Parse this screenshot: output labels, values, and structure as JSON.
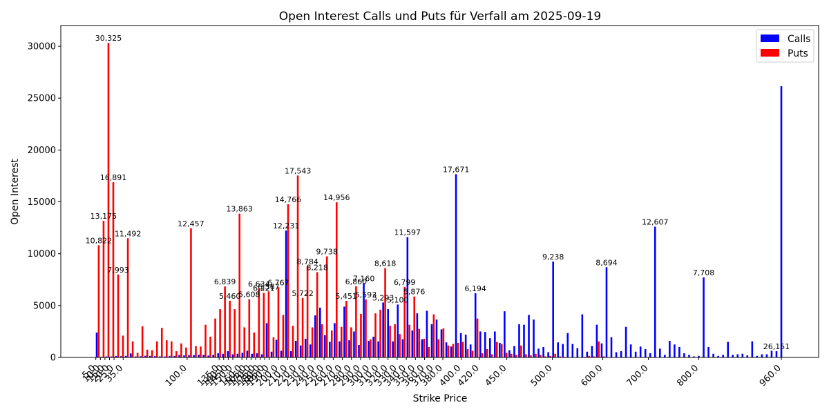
{
  "chart_data": {
    "type": "bar",
    "title": "Open Interest Calls und Puts für Verfall am 2025-09-19",
    "xlabel": "Strike Price",
    "ylabel": "Open Interest",
    "ylim": [
      0,
      32000
    ],
    "y_ticks": [
      0,
      5000,
      10000,
      15000,
      20000,
      25000,
      30000
    ],
    "grid": false,
    "legend_position": "top-right",
    "x_tick_labels": [
      "5.0",
      "10.0",
      "15.0",
      "20.0",
      "25.0",
      "35.0",
      "100.0",
      "135.0",
      "140.0",
      "145.0",
      "150.0",
      "160.0",
      "165.0",
      "170.0",
      "175.0",
      "180.0",
      "185.0",
      "190.0",
      "200.0",
      "210.0",
      "220.0",
      "230.0",
      "240.0",
      "250.0",
      "260.0",
      "270.0",
      "280.0",
      "290.0",
      "300.0",
      "310.0",
      "320.0",
      "330.0",
      "340.0",
      "350.0",
      "360.0",
      "370.0",
      "380.0",
      "400.0",
      "420.0",
      "450.0",
      "500.0",
      "600.0",
      "700.0",
      "800.0",
      "960.0"
    ],
    "series": [
      {
        "name": "Calls",
        "color": "#0000ff",
        "values": [
          2400,
          70,
          100,
          90,
          130,
          120,
          150,
          380,
          90,
          110,
          160,
          140,
          120,
          100,
          90,
          120,
          140,
          230,
          190,
          220,
          230,
          260,
          250,
          180,
          250,
          400,
          350,
          600,
          300,
          350,
          450,
          650,
          350,
          400,
          300,
          3300,
          550,
          1700,
          650,
          12231,
          600,
          1600,
          1150,
          1800,
          1250,
          4050,
          4800,
          2150,
          1500,
          3300,
          1550,
          4900,
          1650,
          2500,
          1200,
          7160,
          1600,
          2000,
          1550,
          5293,
          4650,
          1550,
          5100,
          1750,
          11597,
          2600,
          4250,
          1750,
          4500,
          3200,
          3650,
          2700,
          1450,
          1050,
          17671,
          2350,
          2200,
          1250,
          6194,
          2500,
          2450,
          1850,
          2500,
          1400,
          4450,
          700,
          1100,
          3200,
          3150,
          4100,
          3650,
          850,
          1000,
          500,
          9238,
          1450,
          1300,
          2350,
          1300,
          900,
          4150,
          550,
          1100,
          3150,
          1350,
          8694,
          1950,
          500,
          600,
          2950,
          1250,
          550,
          1050,
          800,
          400,
          12607,
          850,
          250,
          1600,
          1250,
          1000,
          400,
          250,
          100,
          150,
          7708,
          1000,
          350,
          150,
          250,
          1500,
          250,
          300,
          350,
          200,
          1550,
          150,
          300,
          300,
          650,
          600,
          26151
        ]
      },
      {
        "name": "Puts",
        "color": "#ff0000",
        "values": [
          10822,
          13175,
          30325,
          16891,
          7993,
          2100,
          11492,
          1550,
          450,
          3000,
          750,
          700,
          1550,
          2850,
          1650,
          1550,
          600,
          1350,
          950,
          12457,
          1100,
          1050,
          3150,
          2000,
          3750,
          4650,
          6839,
          5460,
          4650,
          13863,
          2900,
          5608,
          2400,
          6634,
          6221,
          6367,
          1950,
          6767,
          4100,
          14766,
          3050,
          17543,
          5722,
          8784,
          2900,
          8218,
          3200,
          9738,
          2600,
          14956,
          2950,
          5451,
          2900,
          6860,
          4200,
          5593,
          1750,
          4250,
          4600,
          8618,
          3050,
          3200,
          2250,
          6799,
          3150,
          5876,
          2750,
          1800,
          1000,
          4150,
          1750,
          2800,
          1150,
          1300,
          1400,
          1500,
          800,
          650,
          3750,
          400,
          800,
          300,
          1500,
          1300,
          450,
          350,
          250,
          1150,
          300,
          200,
          350,
          250,
          100,
          150,
          350,
          100,
          50,
          0,
          0,
          0,
          50,
          150,
          100,
          1550,
          100
        ]
      }
    ],
    "data_labels": [
      {
        "text": "10,822",
        "series": "Puts",
        "index": 0
      },
      {
        "text": "13,175",
        "series": "Puts",
        "index": 1
      },
      {
        "text": "30,325",
        "series": "Puts",
        "index": 2
      },
      {
        "text": "16,891",
        "series": "Puts",
        "index": 3
      },
      {
        "text": "7,993",
        "series": "Puts",
        "index": 4
      },
      {
        "text": "11,492",
        "series": "Puts",
        "index": 6
      },
      {
        "text": "12,457",
        "series": "Puts",
        "index": 19
      },
      {
        "text": "6,839",
        "series": "Puts",
        "index": 26
      },
      {
        "text": "5,460",
        "series": "Puts",
        "index": 27
      },
      {
        "text": "13,863",
        "series": "Puts",
        "index": 29
      },
      {
        "text": "5,608",
        "series": "Puts",
        "index": 31
      },
      {
        "text": "6,634",
        "series": "Puts",
        "index": 33
      },
      {
        "text": "6,221",
        "series": "Puts",
        "index": 34
      },
      {
        "text": "6,367",
        "series": "Puts",
        "index": 35
      },
      {
        "text": "6,767",
        "series": "Puts",
        "index": 37
      },
      {
        "text": "14,766",
        "series": "Puts",
        "index": 39
      },
      {
        "text": "17,543",
        "series": "Puts",
        "index": 41
      },
      {
        "text": "5,722",
        "series": "Puts",
        "index": 42
      },
      {
        "text": "8,784",
        "series": "Puts",
        "index": 43
      },
      {
        "text": "12,231",
        "series": "Calls",
        "index": 39
      },
      {
        "text": "8,218",
        "series": "Puts",
        "index": 45
      },
      {
        "text": "9,738",
        "series": "Puts",
        "index": 47
      },
      {
        "text": "14,956",
        "series": "Puts",
        "index": 49
      },
      {
        "text": "5,451",
        "series": "Puts",
        "index": 51
      },
      {
        "text": "6,860",
        "series": "Puts",
        "index": 53
      },
      {
        "text": "5,593",
        "series": "Puts",
        "index": 55
      },
      {
        "text": "7,160",
        "series": "Calls",
        "index": 55
      },
      {
        "text": "8,618",
        "series": "Puts",
        "index": 59
      },
      {
        "text": "5,293",
        "series": "Calls",
        "index": 59
      },
      {
        "text": "6,799",
        "series": "Puts",
        "index": 63
      },
      {
        "text": "5,876",
        "series": "Puts",
        "index": 65
      },
      {
        "text": "5,100",
        "series": "Calls",
        "index": 62
      },
      {
        "text": "11,597",
        "series": "Calls",
        "index": 64
      },
      {
        "text": "17,671",
        "series": "Calls",
        "index": 74
      },
      {
        "text": "6,194",
        "series": "Calls",
        "index": 78
      },
      {
        "text": "9,238",
        "series": "Calls",
        "index": 94
      },
      {
        "text": "8,694",
        "series": "Calls",
        "index": 105
      },
      {
        "text": "12,607",
        "series": "Calls",
        "index": 115
      },
      {
        "text": "7,708",
        "series": "Calls",
        "index": 125
      },
      {
        "text": "26,151",
        "series": "Calls",
        "index": 140
      }
    ]
  }
}
